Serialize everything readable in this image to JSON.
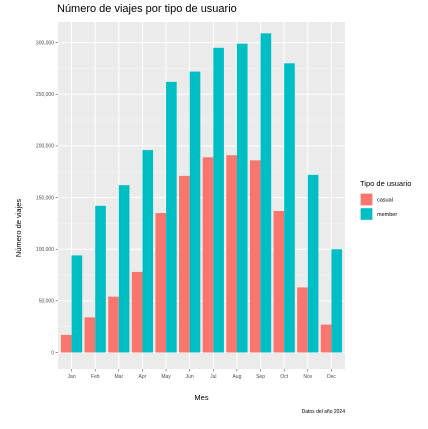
{
  "chart_data": {
    "type": "bar",
    "title": "Número de viajes por tipo de usuario",
    "xlabel": "Mes",
    "ylabel": "Número de viajes",
    "caption": "Datos del año 2024",
    "categories": [
      "Jan",
      "Feb",
      "Mar",
      "Apr",
      "May",
      "Jun",
      "Jul",
      "Aug",
      "Sep",
      "Oct",
      "Nov",
      "Dec"
    ],
    "series": [
      {
        "name": "casual",
        "color": "#f8766d",
        "values": [
          17000,
          34000,
          54000,
          78000,
          135000,
          171000,
          189000,
          191000,
          186000,
          137000,
          63000,
          27000
        ]
      },
      {
        "name": "member",
        "color": "#00bfc4",
        "values": [
          94000,
          142000,
          162000,
          196000,
          262000,
          272000,
          295000,
          299000,
          309000,
          280000,
          172000,
          100000
        ]
      }
    ],
    "yticks": [
      0,
      50000,
      100000,
      150000,
      200000,
      250000,
      300000
    ],
    "ytick_labels": [
      "0",
      "50,000",
      "100,000",
      "150,000",
      "200,000",
      "250,000",
      "300,000"
    ],
    "ylim": [
      0,
      320000
    ],
    "grid": true,
    "legend": {
      "title": "Tipo de usuario",
      "position": "right"
    }
  }
}
